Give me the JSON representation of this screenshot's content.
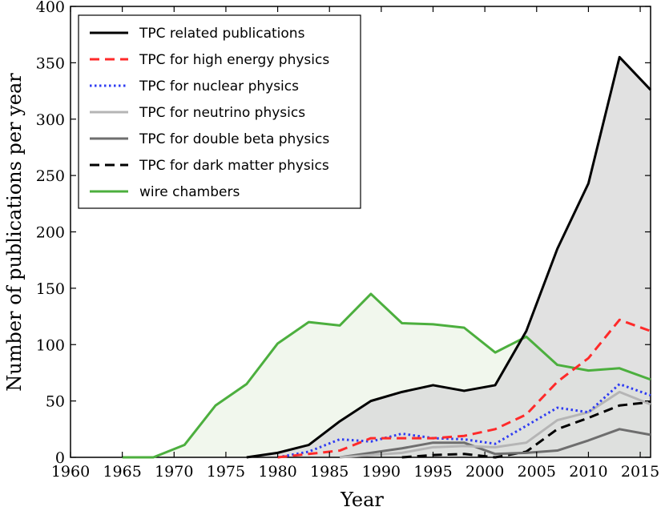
{
  "chart_data": {
    "type": "line",
    "xlabel": "Year",
    "ylabel": "Number of publications per year",
    "xlim": [
      1960,
      2016
    ],
    "ylim": [
      0,
      400
    ],
    "xticks": [
      "1960",
      "1965",
      "1970",
      "1975",
      "1980",
      "1985",
      "1990",
      "1995",
      "2000",
      "2005",
      "2010",
      "2015"
    ],
    "yticks": [
      "0",
      "50",
      "100",
      "150",
      "200",
      "250",
      "300",
      "350",
      "400"
    ],
    "legend_position": "top-left",
    "series": [
      {
        "name": "TPC related publications",
        "color": "#000000",
        "style": "solid",
        "fill": "#d9d9d9",
        "x": [
          1977,
          1980,
          1983,
          1986,
          1989,
          1992,
          1995,
          1998,
          2001,
          2004,
          2007,
          2010,
          2013,
          2016
        ],
        "y": [
          0,
          4,
          11,
          32,
          50,
          58,
          64,
          59,
          64,
          112,
          185,
          243,
          355,
          326
        ]
      },
      {
        "name": "TPC for high energy physics",
        "color": "#ff2a2a",
        "style": "dashed",
        "x": [
          1980,
          1983,
          1986,
          1989,
          1992,
          1995,
          1998,
          2001,
          2004,
          2007,
          2010,
          2013,
          2016
        ],
        "y": [
          0,
          3,
          6,
          17,
          17,
          17,
          19,
          25,
          38,
          67,
          88,
          122,
          112
        ]
      },
      {
        "name": "TPC for nuclear physics",
        "color": "#2f3cf2",
        "style": "dotted",
        "x": [
          1980,
          1983,
          1986,
          1989,
          1992,
          1995,
          1998,
          2001,
          2004,
          2007,
          2010,
          2013,
          2016
        ],
        "y": [
          0,
          5,
          16,
          14,
          21,
          17,
          16,
          12,
          28,
          44,
          40,
          65,
          55
        ]
      },
      {
        "name": "TPC for neutrino physics",
        "color": "#b5b5b5",
        "style": "solid",
        "x": [
          1986,
          1989,
          1992,
          1995,
          1998,
          2001,
          2004,
          2007,
          2010,
          2013,
          2016
        ],
        "y": [
          0,
          2,
          4,
          9,
          10,
          9,
          13,
          33,
          40,
          58,
          47
        ]
      },
      {
        "name": "TPC for double beta physics",
        "color": "#6e6e6e",
        "style": "solid",
        "x": [
          1986,
          1989,
          1992,
          1995,
          1998,
          2001,
          2004,
          2007,
          2010,
          2013,
          2016
        ],
        "y": [
          0,
          4,
          8,
          13,
          13,
          3,
          4,
          6,
          15,
          25,
          20
        ]
      },
      {
        "name": "TPC for dark matter physics",
        "color": "#000000",
        "style": "dashed",
        "x": [
          1992,
          1995,
          1998,
          2001,
          2004,
          2007,
          2010,
          2013,
          2016
        ],
        "y": [
          0,
          2,
          3,
          0,
          5,
          25,
          35,
          46,
          49
        ]
      },
      {
        "name": "wire chambers",
        "color": "#4caf3e",
        "style": "solid",
        "fill": "#edf5e8",
        "x": [
          1965,
          1968,
          1971,
          1974,
          1977,
          1980,
          1983,
          1986,
          1989,
          1992,
          1995,
          1998,
          2001,
          2004,
          2007,
          2010,
          2013,
          2016
        ],
        "y": [
          0,
          0,
          11,
          46,
          65,
          101,
          120,
          117,
          145,
          119,
          118,
          115,
          93,
          107,
          82,
          77,
          79,
          69
        ]
      }
    ]
  }
}
